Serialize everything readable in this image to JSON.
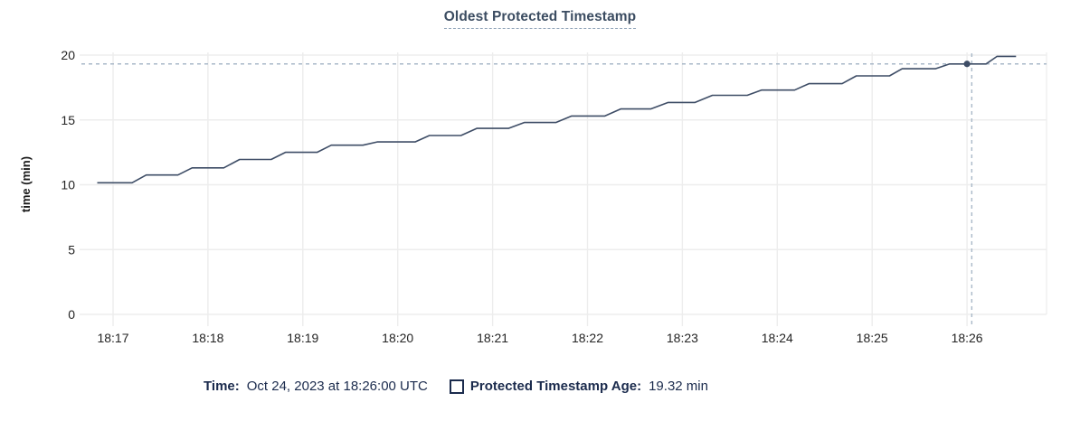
{
  "title": "Oldest Protected Timestamp",
  "tooltip_bar": {
    "time_label": "Time:",
    "time_value": "Oct 24, 2023 at 18:26:00 UTC",
    "series_label": "Protected Timestamp Age:",
    "series_value": "19.32 min",
    "checkbox_icon": "square-outline-icon"
  },
  "colors": {
    "line": "#3e4d66",
    "hover_dot": "#3e4d66",
    "crosshair": "#a9b8c8",
    "grid": "#ededed",
    "title_text": "#3b4c61",
    "title_underline": "#8fa3b8",
    "tick_text": "#242424",
    "legend_text": "#1b2b4d",
    "background": "#ffffff"
  },
  "chart_data": {
    "type": "line",
    "title": "Oldest Protected Timestamp",
    "xlabel": "",
    "ylabel": "time (min)",
    "ylim": [
      0,
      20
    ],
    "y_ticks": [
      0,
      5,
      10,
      15,
      20
    ],
    "x_tick_labels": [
      "18:17",
      "18:18",
      "18:19",
      "18:20",
      "18:21",
      "18:22",
      "18:23",
      "18:24",
      "18:25",
      "18:26"
    ],
    "x_domain": [
      "18:16:40",
      "18:26:50"
    ],
    "grid": true,
    "legend_position": "bottom",
    "series": [
      {
        "name": "Protected Timestamp Age",
        "unit": "min",
        "points": [
          [
            "18:16:50",
            10.15
          ],
          [
            "18:17:12",
            10.15
          ],
          [
            "18:17:21",
            10.75
          ],
          [
            "18:17:41",
            10.75
          ],
          [
            "18:17:50",
            11.3
          ],
          [
            "18:18:10",
            11.3
          ],
          [
            "18:18:20",
            11.95
          ],
          [
            "18:18:40",
            11.95
          ],
          [
            "18:18:49",
            12.5
          ],
          [
            "18:19:09",
            12.5
          ],
          [
            "18:19:18",
            13.05
          ],
          [
            "18:19:38",
            13.05
          ],
          [
            "18:19:47",
            13.3
          ],
          [
            "18:20:11",
            13.3
          ],
          [
            "18:20:20",
            13.8
          ],
          [
            "18:20:40",
            13.8
          ],
          [
            "18:20:50",
            14.35
          ],
          [
            "18:21:10",
            14.35
          ],
          [
            "18:21:20",
            14.8
          ],
          [
            "18:21:40",
            14.8
          ],
          [
            "18:21:50",
            15.3
          ],
          [
            "18:22:11",
            15.3
          ],
          [
            "18:22:21",
            15.85
          ],
          [
            "18:22:40",
            15.85
          ],
          [
            "18:22:51",
            16.35
          ],
          [
            "18:23:08",
            16.35
          ],
          [
            "18:23:19",
            16.9
          ],
          [
            "18:23:41",
            16.9
          ],
          [
            "18:23:50",
            17.3
          ],
          [
            "18:24:11",
            17.3
          ],
          [
            "18:24:20",
            17.8
          ],
          [
            "18:24:41",
            17.8
          ],
          [
            "18:24:50",
            18.4
          ],
          [
            "18:25:11",
            18.4
          ],
          [
            "18:25:19",
            18.95
          ],
          [
            "18:25:40",
            18.95
          ],
          [
            "18:25:49",
            19.32
          ],
          [
            "18:26:12",
            19.32
          ],
          [
            "18:26:19",
            19.9
          ],
          [
            "18:26:31",
            19.9
          ]
        ]
      }
    ],
    "hover_point": {
      "x": "18:26:00",
      "y": 19.32
    },
    "crosshair": {
      "x": "18:26:03",
      "y": 19.32
    }
  }
}
